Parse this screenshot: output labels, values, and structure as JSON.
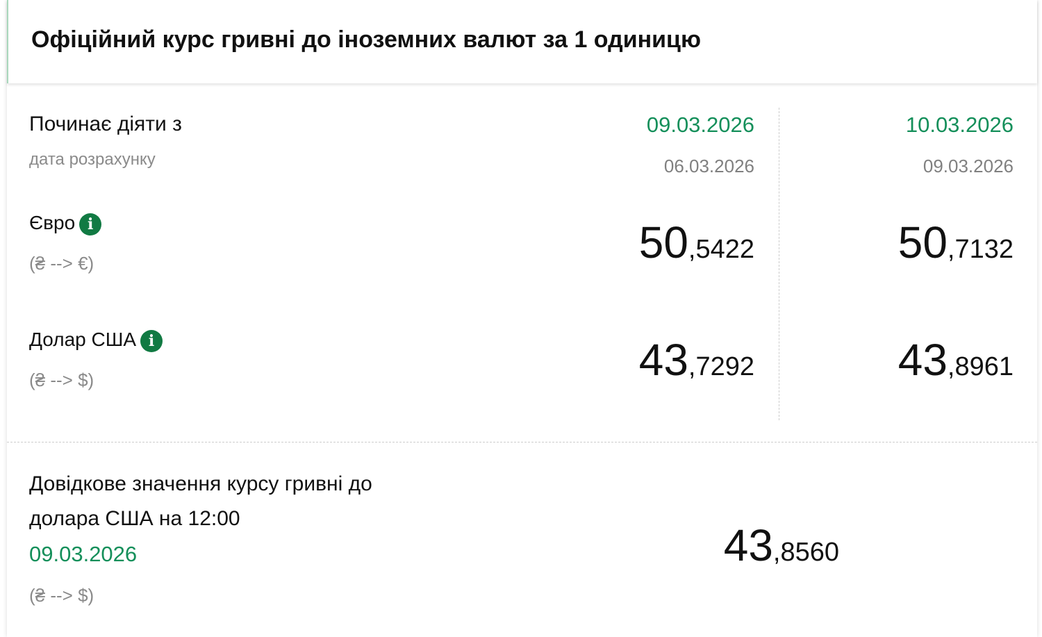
{
  "title": "Офіційний курс гривні до іноземних валют за 1 одиницю",
  "labels": {
    "effective_from": "Починає діяти з",
    "calc_date": "дата розрахунку"
  },
  "columns": [
    {
      "effective_date": "09.03.2026",
      "calc_date": "06.03.2026"
    },
    {
      "effective_date": "10.03.2026",
      "calc_date": "09.03.2026"
    }
  ],
  "currencies": [
    {
      "name": "Євро",
      "direction": "(₴ --> €)",
      "rates": [
        {
          "int": "50",
          "dec": ",5422"
        },
        {
          "int": "50",
          "dec": ",7132"
        }
      ]
    },
    {
      "name": "Долар США",
      "direction": "(₴ --> $)",
      "rates": [
        {
          "int": "43",
          "dec": ",7292"
        },
        {
          "int": "43",
          "dec": ",8961"
        }
      ]
    }
  ],
  "reference": {
    "line1": "Довідкове значення курсу гривні до",
    "line2": "долара США на 12:00",
    "date": "09.03.2026",
    "direction": "(₴ --> $)",
    "int": "43",
    "dec": ",8560"
  },
  "colors": {
    "accent": "#148f5a",
    "info_icon": "#117a43"
  },
  "icons": {
    "info": "info-icon"
  }
}
